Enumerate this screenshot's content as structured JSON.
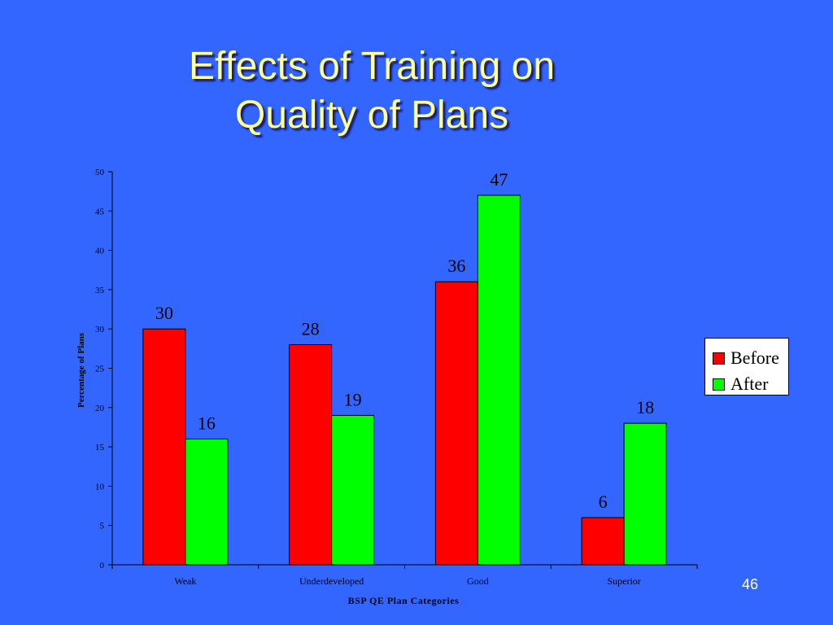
{
  "slide": {
    "title_line1": "Effects of Training on",
    "title_line2": "Quality of Plans",
    "page_number": "46"
  },
  "colors": {
    "background": "#3366ff",
    "title": "#ffff99",
    "before": "#ff0000",
    "after": "#00ff00"
  },
  "chart_data": {
    "type": "bar",
    "title": "",
    "xlabel": "BSP QE Plan Categories",
    "ylabel": "Percentage of Plans",
    "categories": [
      "Weak",
      "Underdeveloped",
      "Good",
      "Superior"
    ],
    "series": [
      {
        "name": "Before",
        "values": [
          30,
          28,
          36,
          6
        ]
      },
      {
        "name": "After",
        "values": [
          16,
          19,
          47,
          18
        ]
      }
    ],
    "ylim": [
      0,
      50
    ],
    "yticks": [
      0,
      5,
      10,
      15,
      20,
      25,
      30,
      35,
      40,
      45,
      50
    ],
    "grid": false,
    "legend": "right"
  }
}
